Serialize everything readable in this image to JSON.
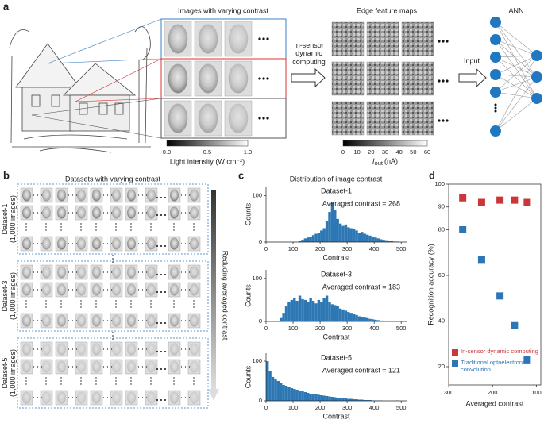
{
  "panel_labels": [
    "a",
    "b",
    "c",
    "d"
  ],
  "panel_a": {
    "images_title": "Images with varying contrast",
    "arrow1_text": "In-sensor dynamic computing",
    "edge_title": "Edge feature maps",
    "arrow2_text": "Input",
    "ann_title": "ANN",
    "light_colorbar": {
      "ticks": [
        "0.0",
        "0.5",
        "1.0"
      ],
      "label": "Light intensity (W cm⁻²)"
    },
    "current_colorbar": {
      "ticks": [
        0,
        10,
        20,
        30,
        40,
        50,
        60
      ],
      "symbol": "I",
      "subscript": "out",
      "unit": "(nA)"
    }
  },
  "panel_b": {
    "title": "Datasets with varying contrast",
    "datasets": [
      {
        "name": "Dataset-1",
        "size": "(1,000 images)"
      },
      {
        "name": "Dataset-3",
        "size": "(1,000 images)"
      },
      {
        "name": "Dataset-5",
        "size": "(1,000 images)"
      }
    ],
    "arrow_text": "Reducing averaged contrast"
  },
  "panel_c": {
    "title": "Distribution of image contrast"
  },
  "chart_data": [
    {
      "type": "histogram",
      "title": "Dataset-1",
      "annotation": "Averaged contrast = 268",
      "xlabel": "Contrast",
      "ylabel": "Counts",
      "color": "#2d78b4",
      "xlim": [
        0,
        520
      ],
      "ylim": [
        0,
        120
      ],
      "xticks": [
        0,
        100,
        200,
        300,
        400,
        500
      ],
      "yticks": [
        0,
        100
      ],
      "bins": [
        0,
        10,
        20,
        30,
        40,
        50,
        60,
        70,
        80,
        90,
        100,
        110,
        120,
        130,
        140,
        150,
        160,
        170,
        180,
        190,
        200,
        210,
        220,
        230,
        240,
        250,
        260,
        270,
        280,
        290,
        300,
        310,
        320,
        330,
        340,
        350,
        360,
        370,
        380,
        390,
        400,
        410,
        420,
        430,
        440,
        450,
        460,
        470,
        480,
        490,
        500,
        510,
        520
      ],
      "counts": [
        0,
        0,
        0,
        0,
        0,
        0,
        0,
        0,
        0,
        0,
        0,
        0,
        2,
        5,
        8,
        10,
        12,
        15,
        18,
        20,
        25,
        30,
        45,
        65,
        85,
        70,
        50,
        40,
        35,
        38,
        32,
        30,
        28,
        25,
        20,
        22,
        18,
        16,
        14,
        12,
        10,
        8,
        6,
        5,
        4,
        3,
        2,
        1,
        1,
        0,
        0,
        0
      ]
    },
    {
      "type": "histogram",
      "title": "Dataset-3",
      "annotation": "Averaged contrast = 183",
      "xlabel": "Contrast",
      "ylabel": "Counts",
      "color": "#2d78b4",
      "xlim": [
        0,
        520
      ],
      "ylim": [
        0,
        120
      ],
      "xticks": [
        0,
        100,
        200,
        300,
        400,
        500
      ],
      "yticks": [
        0,
        100
      ],
      "bins": [
        0,
        10,
        20,
        30,
        40,
        50,
        60,
        70,
        80,
        90,
        100,
        110,
        120,
        130,
        140,
        150,
        160,
        170,
        180,
        190,
        200,
        210,
        220,
        230,
        240,
        250,
        260,
        270,
        280,
        290,
        300,
        310,
        320,
        330,
        340,
        350,
        360,
        370,
        380,
        390,
        400,
        410,
        420,
        430,
        440,
        450,
        460,
        470,
        480,
        490,
        500,
        510,
        520
      ],
      "counts": [
        0,
        0,
        0,
        0,
        0,
        8,
        20,
        35,
        45,
        50,
        55,
        48,
        60,
        52,
        50,
        45,
        55,
        48,
        42,
        50,
        45,
        55,
        60,
        45,
        40,
        38,
        35,
        30,
        28,
        25,
        22,
        20,
        18,
        15,
        12,
        10,
        9,
        8,
        6,
        5,
        4,
        3,
        2,
        2,
        1,
        1,
        0,
        0,
        0,
        1,
        0,
        0
      ]
    },
    {
      "type": "histogram",
      "title": "Dataset-5",
      "annotation": "Averaged contrast = 121",
      "xlabel": "Contrast",
      "ylabel": "Counts",
      "color": "#2d78b4",
      "xlim": [
        0,
        520
      ],
      "ylim": [
        0,
        120
      ],
      "xticks": [
        0,
        100,
        200,
        300,
        400,
        500
      ],
      "yticks": [
        0,
        100
      ],
      "bins": [
        0,
        10,
        20,
        30,
        40,
        50,
        60,
        70,
        80,
        90,
        100,
        110,
        120,
        130,
        140,
        150,
        160,
        170,
        180,
        190,
        200,
        210,
        220,
        230,
        240,
        250,
        260,
        270,
        280,
        290,
        300,
        310,
        320,
        330,
        340,
        350,
        360,
        370,
        380,
        390,
        400,
        410,
        420,
        430,
        440,
        450,
        460,
        470,
        480,
        490,
        500,
        510,
        520
      ],
      "counts": [
        100,
        75,
        60,
        55,
        50,
        45,
        40,
        38,
        35,
        32,
        30,
        28,
        26,
        24,
        22,
        20,
        18,
        17,
        16,
        15,
        14,
        13,
        12,
        11,
        10,
        9,
        8,
        7,
        7,
        6,
        5,
        5,
        4,
        4,
        3,
        3,
        2,
        2,
        2,
        1,
        1,
        1,
        1,
        0,
        0,
        0,
        0,
        0,
        1,
        0,
        0,
        0
      ]
    },
    {
      "type": "scatter",
      "xlabel": "Averaged contrast",
      "ylabel": "Recognition accuracy (%)",
      "xlim": [
        300,
        90
      ],
      "ylim": [
        12,
        100
      ],
      "xticks": [
        300,
        200,
        100
      ],
      "yticks": [
        20,
        40,
        60,
        80,
        90,
        100
      ],
      "legend": "lower left",
      "x": [
        268,
        225,
        183,
        150,
        121
      ],
      "series": [
        {
          "name": "In-sensor dynamic computing",
          "color": "#c9373a",
          "values": [
            94,
            92,
            93,
            93,
            92
          ]
        },
        {
          "name": "Traditional optoelectronic convolution",
          "color": "#2e75b6",
          "values": [
            80,
            67,
            51,
            38,
            23
          ]
        }
      ]
    }
  ]
}
